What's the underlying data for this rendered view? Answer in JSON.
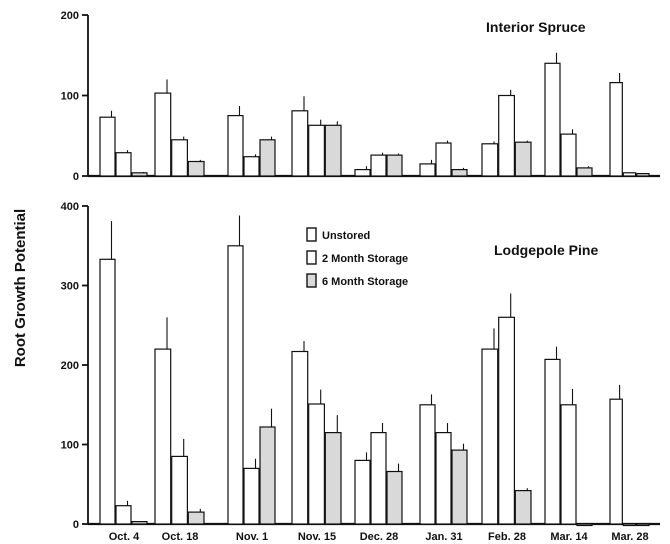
{
  "chart_data": {
    "type": "bar",
    "ylabel": "Root  Growth  Potential",
    "categories": [
      "Oct. 4",
      "Oct. 18",
      "Nov. 1",
      "Nov. 15",
      "Dec. 28",
      "Jan. 31",
      "Feb. 28",
      "Mar. 14",
      "Mar. 28"
    ],
    "legend": {
      "placement": "center-right",
      "entries": [
        {
          "label": "Unstored",
          "series": "unstored"
        },
        {
          "label": "2 Month Storage",
          "series": "two_month"
        },
        {
          "label": "6 Month Storage",
          "series": "six_month"
        }
      ]
    },
    "styles": {
      "unstored": {
        "fill": "#ffffff"
      },
      "two_month": {
        "fill": "#ffffff"
      },
      "six_month": {
        "fill": "#d9d9d9"
      },
      "ink": "#111111"
    },
    "panels": [
      {
        "title": "Interior Spruce",
        "ylim": [
          0,
          200
        ],
        "yticks": [
          "0",
          "100",
          "200"
        ],
        "series": [
          {
            "key": "unstored",
            "values": [
              73,
              103,
              75,
              81,
              8,
              15,
              40,
              140,
              116
            ],
            "errors": [
              8,
              17,
              12,
              18,
              4,
              5,
              3,
              13,
              12
            ]
          },
          {
            "key": "two_month",
            "values": [
              29,
              45,
              24,
              63,
              26,
              41,
              100,
              52,
              4
            ],
            "errors": [
              3,
              4,
              3,
              7,
              3,
              3,
              7,
              6,
              0
            ]
          },
          {
            "key": "six_month",
            "values": [
              4,
              18,
              45,
              63,
              26,
              8,
              42,
              10,
              3
            ],
            "errors": [
              1,
              2,
              4,
              5,
              2,
              2,
              2,
              2,
              0
            ]
          }
        ]
      },
      {
        "title": "Lodgepole Pine",
        "ylim": [
          0,
          400
        ],
        "yticks": [
          "0",
          "100",
          "200",
          "300",
          "400"
        ],
        "series": [
          {
            "key": "unstored",
            "values": [
              333,
              220,
              350,
              217,
              80,
              150,
              220,
              207,
              157
            ],
            "errors": [
              48,
              40,
              38,
              13,
              10,
              13,
              26,
              16,
              18
            ]
          },
          {
            "key": "two_month",
            "values": [
              23,
              85,
              70,
              151,
              115,
              115,
              260,
              150,
              0
            ],
            "errors": [
              6,
              22,
              12,
              18,
              12,
              12,
              30,
              20,
              0
            ]
          },
          {
            "key": "six_month",
            "values": [
              3,
              15,
              122,
              115,
              66,
              93,
              42,
              0,
              0
            ],
            "errors": [
              0,
              4,
              23,
              22,
              10,
              8,
              3,
              0,
              0
            ]
          }
        ]
      }
    ]
  }
}
